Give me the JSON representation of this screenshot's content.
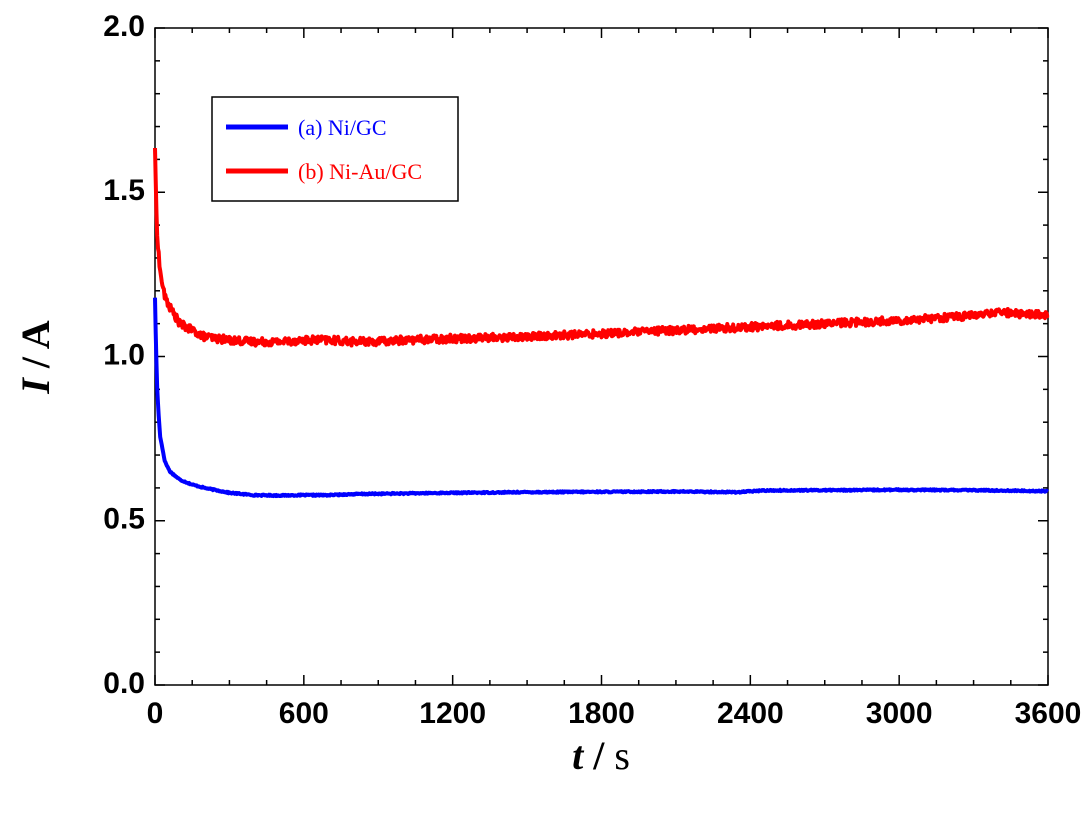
{
  "chart_data": {
    "type": "line",
    "xlabel": {
      "var": "t",
      "unit": "s"
    },
    "ylabel": {
      "var": "I",
      "unit": "A"
    },
    "xlim": [
      0,
      3600
    ],
    "ylim": [
      0.0,
      2.0
    ],
    "x_ticks": [
      0,
      600,
      1200,
      1800,
      2400,
      3000,
      3600
    ],
    "y_ticks": [
      0.0,
      0.5,
      1.0,
      1.5,
      2.0
    ],
    "x_tick_labels": [
      "0",
      "600",
      "1200",
      "1800",
      "2400",
      "3000",
      "3600"
    ],
    "y_tick_labels": [
      "0.0",
      "0.5",
      "1.0",
      "1.5",
      "2.0"
    ],
    "grid": false,
    "legend": {
      "placement": "top-left"
    },
    "series": [
      {
        "name": "(a) Ni/GC",
        "color": "#0000ff",
        "noise": 0.002,
        "points": [
          [
            0,
            1.18
          ],
          [
            5,
            1.0
          ],
          [
            10,
            0.88
          ],
          [
            20,
            0.76
          ],
          [
            40,
            0.68
          ],
          [
            60,
            0.65
          ],
          [
            100,
            0.625
          ],
          [
            150,
            0.61
          ],
          [
            200,
            0.6
          ],
          [
            300,
            0.585
          ],
          [
            400,
            0.578
          ],
          [
            500,
            0.577
          ],
          [
            600,
            0.578
          ],
          [
            700,
            0.578
          ],
          [
            800,
            0.581
          ],
          [
            1000,
            0.583
          ],
          [
            1200,
            0.585
          ],
          [
            1500,
            0.587
          ],
          [
            1800,
            0.588
          ],
          [
            2100,
            0.589
          ],
          [
            2350,
            0.587
          ],
          [
            2450,
            0.592
          ],
          [
            2700,
            0.593
          ],
          [
            3000,
            0.594
          ],
          [
            3300,
            0.593
          ],
          [
            3600,
            0.59
          ]
        ]
      },
      {
        "name": "(b) Ni-Au/GC",
        "color": "#ff0000",
        "noise": 0.012,
        "points": [
          [
            0,
            1.64
          ],
          [
            5,
            1.45
          ],
          [
            10,
            1.36
          ],
          [
            20,
            1.26
          ],
          [
            40,
            1.18
          ],
          [
            60,
            1.15
          ],
          [
            100,
            1.1
          ],
          [
            150,
            1.08
          ],
          [
            200,
            1.06
          ],
          [
            300,
            1.05
          ],
          [
            400,
            1.045
          ],
          [
            500,
            1.045
          ],
          [
            600,
            1.05
          ],
          [
            700,
            1.05
          ],
          [
            800,
            1.045
          ],
          [
            900,
            1.045
          ],
          [
            1000,
            1.05
          ],
          [
            1200,
            1.055
          ],
          [
            1500,
            1.06
          ],
          [
            1800,
            1.07
          ],
          [
            2100,
            1.08
          ],
          [
            2400,
            1.09
          ],
          [
            2700,
            1.1
          ],
          [
            3000,
            1.11
          ],
          [
            3300,
            1.125
          ],
          [
            3400,
            1.135
          ],
          [
            3600,
            1.125
          ]
        ]
      }
    ]
  }
}
